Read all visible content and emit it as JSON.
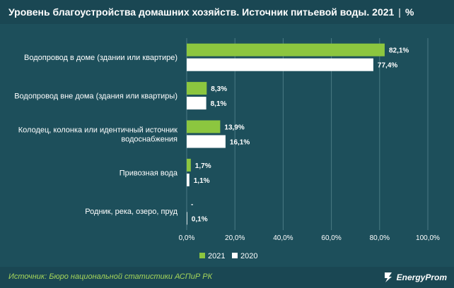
{
  "header": {
    "title": "Уровень благоустройства домашних хозяйств. Источник питьевой воды. 2021",
    "separator": "|",
    "unit": "%"
  },
  "footer": {
    "source": "Источник: Бюро национальной статистики АСПиР РК",
    "logo_text": "EnergyProm"
  },
  "colors": {
    "series_2021": "#8cc63f",
    "series_2020": "#ffffff",
    "text": "#ffffff",
    "grid": "#4a7a84",
    "source_text": "#a6d65a"
  },
  "chart_data": {
    "type": "bar",
    "orientation": "horizontal",
    "categories": [
      [
        "Водопровод в доме (здании или квартире)"
      ],
      [
        "Водопровод вне дома (здания или квартиры)"
      ],
      [
        "Колодец, колонка или идентичный источник",
        "водоснабжения"
      ],
      [
        "Привозная вода"
      ],
      [
        "Родник, река, озеро, пруд"
      ]
    ],
    "series": [
      {
        "name": "2021",
        "values": [
          82.1,
          8.3,
          13.9,
          1.7,
          null
        ],
        "labels": [
          "82,1%",
          "8,3%",
          "13,9%",
          "1,7%",
          "-"
        ]
      },
      {
        "name": "2020",
        "values": [
          77.4,
          8.1,
          16.1,
          1.1,
          0.1
        ],
        "labels": [
          "77,4%",
          "8,1%",
          "16,1%",
          "1,1%",
          "0,1%"
        ]
      }
    ],
    "xlim": [
      0,
      100
    ],
    "xticks": [
      0,
      20,
      40,
      60,
      80,
      100
    ],
    "xtick_labels": [
      "0,0%",
      "20,0%",
      "40,0%",
      "60,0%",
      "80,0%",
      "100,0%"
    ],
    "grid": true,
    "legend": "bottom-center"
  }
}
